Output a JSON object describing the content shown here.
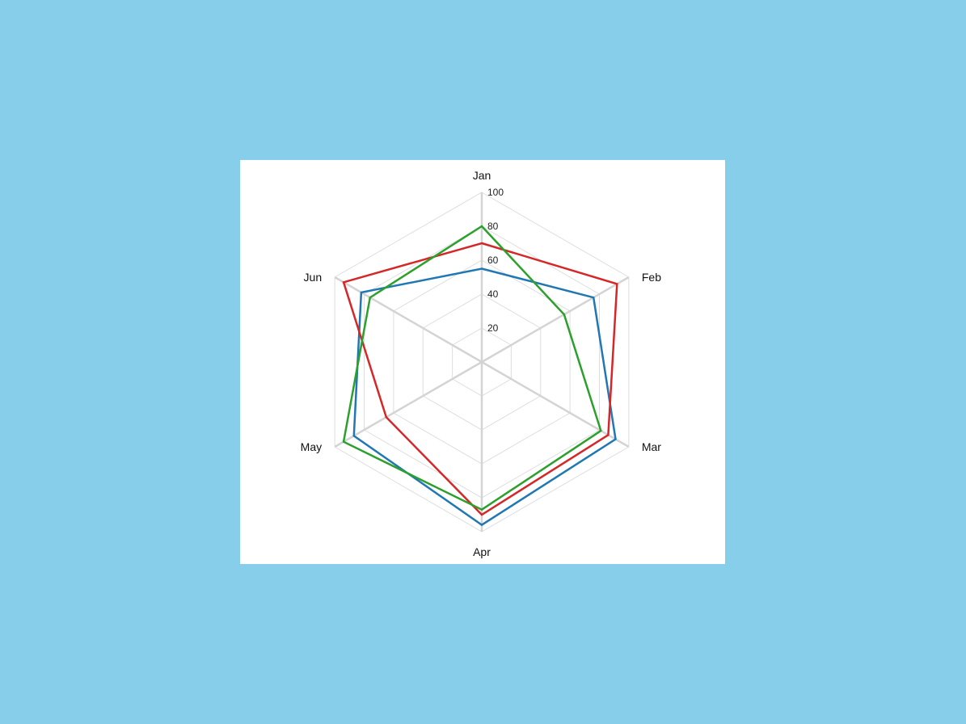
{
  "page": {
    "background": "#87ceeb"
  },
  "chart_data": {
    "type": "radar",
    "categories": [
      "Jan",
      "Feb",
      "Mar",
      "Apr",
      "May",
      "Jun"
    ],
    "rlim": [
      0,
      100
    ],
    "rticks": [
      20,
      40,
      60,
      80,
      100
    ],
    "grid": true,
    "series": [
      {
        "color": "#1f77b4",
        "values": [
          55,
          76,
          91,
          96,
          87,
          82
        ]
      },
      {
        "color": "#d62728",
        "values": [
          70,
          92,
          86,
          90,
          65,
          94
        ]
      },
      {
        "color": "#2ca02c",
        "values": [
          80,
          56,
          81,
          87,
          94,
          76
        ]
      }
    ]
  }
}
